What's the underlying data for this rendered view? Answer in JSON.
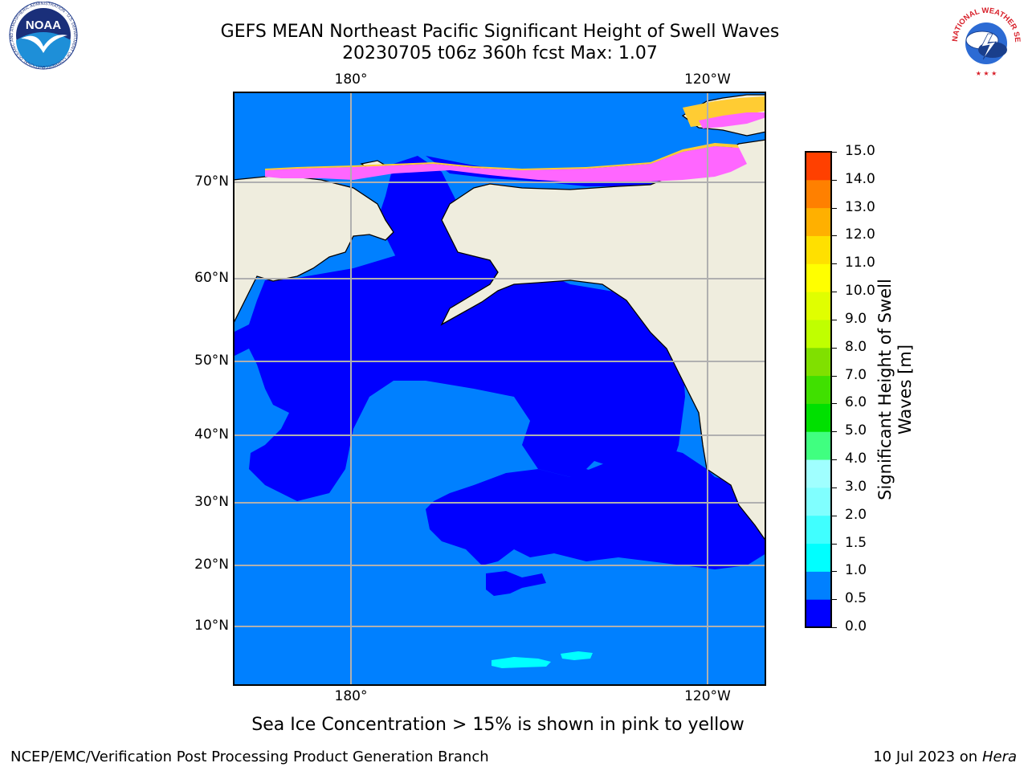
{
  "title": {
    "line1": "GEFS MEAN Northeast Pacific Significant Height of Swell Waves",
    "line2": "20230705 t06z 360h fcst   Max: 1.07"
  },
  "map": {
    "lon_labels": [
      "180°",
      "120°W"
    ],
    "lat_labels": [
      "70°N",
      "60°N",
      "50°N",
      "40°N",
      "30°N",
      "20°N",
      "10°N"
    ],
    "colors": {
      "land": "#efedde",
      "sea_0_0_5": "#0000ff",
      "sea_0_5_1_0": "#0080ff",
      "sea_1_0_1_5": "#00ffff",
      "ice_pink": "#ff66ff",
      "ice_yellow": "#ffcc33",
      "grid": "#b0b0b0"
    }
  },
  "colorbar": {
    "title": "Significant Height of Swell Waves [m]",
    "ticks": [
      "15.0",
      "14.0",
      "13.0",
      "12.0",
      "11.0",
      "10.0",
      "9.0",
      "8.0",
      "7.0",
      "6.0",
      "5.0",
      "4.0",
      "3.0",
      "2.0",
      "1.5",
      "1.0",
      "0.5",
      "0.0"
    ],
    "colors_bottom_to_top": [
      "#0000ff",
      "#0080ff",
      "#00ffff",
      "#40ffff",
      "#80ffff",
      "#a0ffff",
      "#40ff80",
      "#00e000",
      "#40e000",
      "#80e000",
      "#c0ff00",
      "#e0ff00",
      "#ffff00",
      "#ffe000",
      "#ffb000",
      "#ff8000",
      "#ff4000",
      "#ff2000",
      "#ff0000"
    ]
  },
  "caption": "Sea Ice Concentration > 15% is shown in pink to yellow",
  "footer": {
    "left": "NCEP/EMC/Verification Post Processing Product Generation Branch",
    "right_date": "10 Jul 2023 on ",
    "right_host": "Hera"
  },
  "logos": {
    "noaa": "NOAA",
    "noaa_ring": "NATIONAL OCEANIC AND ATMOSPHERIC ADMINISTRATION · U.S. DEPARTMENT OF COMMERCE",
    "nws_ring": "NATIONAL WEATHER SERVICE"
  }
}
